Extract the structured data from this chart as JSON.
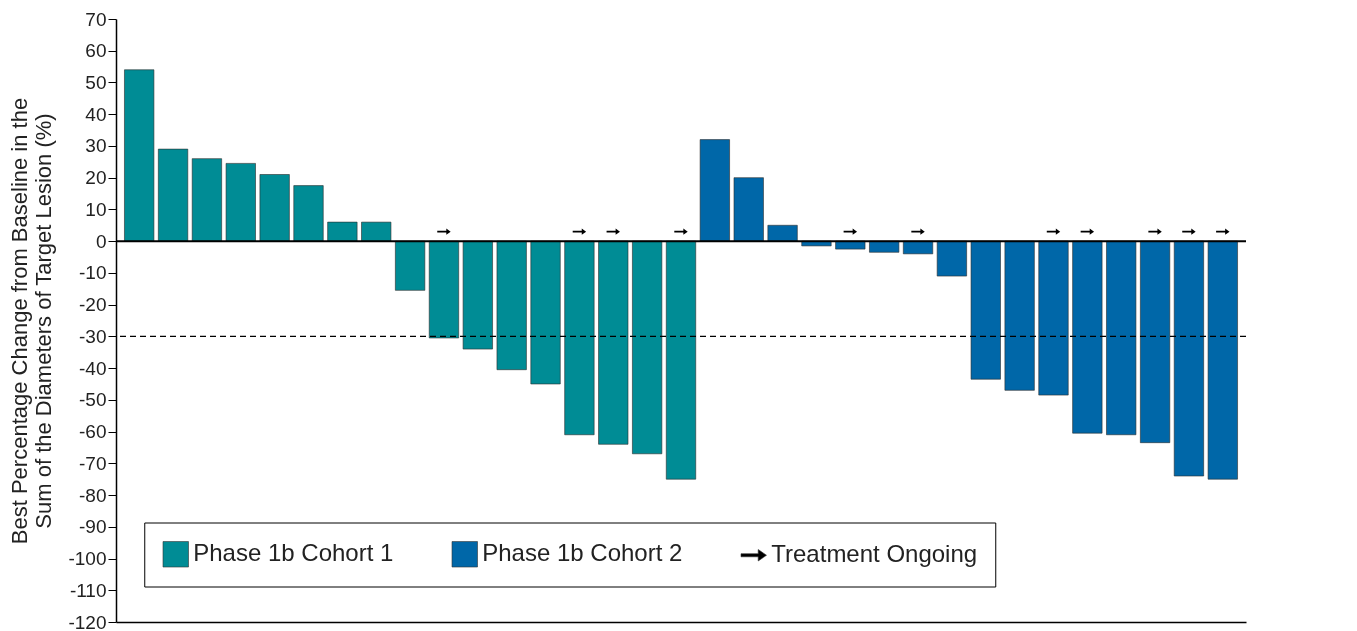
{
  "chart_data": {
    "type": "bar",
    "ylabel": "Best Percentage Change from Baseline in the\nSum of the Diameters of Target Lesion (%)",
    "categories": [
      null,
      null,
      null,
      null,
      null,
      null,
      null,
      null,
      null,
      null,
      null,
      null,
      null,
      null,
      null,
      null,
      null,
      null,
      null,
      null,
      null,
      null,
      null,
      null,
      null,
      null,
      null,
      null,
      null,
      null,
      null,
      null,
      null
    ],
    "series": [
      {
        "name": "Phase 1b Cohort 1",
        "color": "#008c95",
        "values": [
          54,
          29,
          26,
          24.5,
          21,
          17.5,
          6,
          6,
          -15.5,
          -30.5,
          -34,
          -40.5,
          -45,
          -61,
          -64,
          -67,
          -75,
          null,
          null,
          null,
          null,
          null,
          null,
          null,
          null,
          null,
          null,
          null,
          null,
          null,
          null,
          null,
          null
        ]
      },
      {
        "name": "Phase 1b Cohort 2",
        "color": "#0067a8",
        "values": [
          null,
          null,
          null,
          null,
          null,
          null,
          null,
          null,
          null,
          null,
          null,
          null,
          null,
          null,
          null,
          null,
          null,
          32,
          20,
          5,
          -1.5,
          -2.5,
          -3.5,
          -4,
          -11,
          -43.5,
          -47,
          -48.5,
          -60.5,
          -61,
          -63.5,
          -74,
          -75
        ]
      },
      {
        "name": "Treatment Ongoing",
        "type": "scatter",
        "color": "#000000",
        "values": [
          null,
          null,
          null,
          null,
          null,
          null,
          null,
          null,
          null,
          3,
          null,
          null,
          null,
          3,
          3,
          null,
          3,
          null,
          null,
          null,
          null,
          3,
          null,
          3,
          null,
          null,
          null,
          3,
          3,
          null,
          3,
          3,
          3
        ]
      }
    ],
    "ylim": [
      -120,
      70
    ],
    "yticks": [
      -120,
      -110,
      -100,
      -90,
      -80,
      -70,
      -60,
      -50,
      -40,
      -30,
      -20,
      -10,
      0,
      10,
      20,
      30,
      40,
      50,
      60,
      70
    ],
    "ref_lines": [
      {
        "axis": "y",
        "value": -30,
        "line_style": "dashed",
        "color": "#000000"
      }
    ],
    "legend": "bottom"
  }
}
